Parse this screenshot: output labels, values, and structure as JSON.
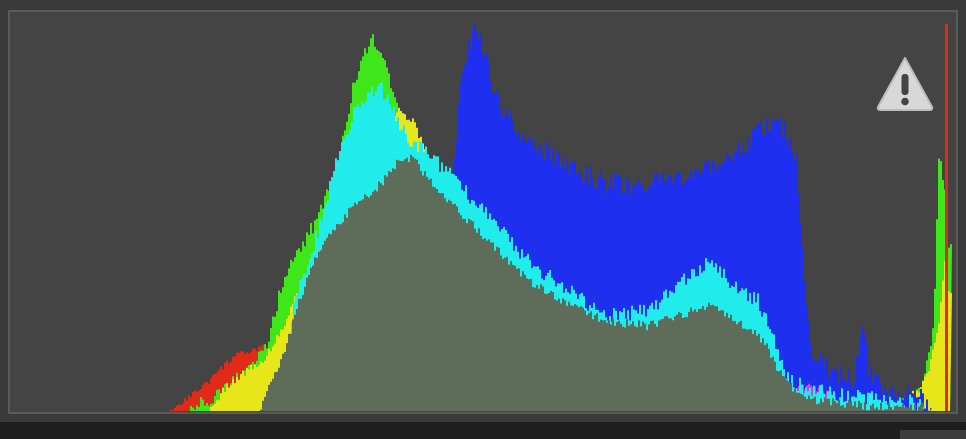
{
  "histogram": {
    "background_color": "#444444",
    "colors": {
      "red": "#e02a1a",
      "yellow": "#e6e619",
      "green": "#3ee61a",
      "cyan": "#21ecec",
      "blue": "#1f2ff0",
      "magenta": "#d63ee0",
      "luminance": "#5f6c59"
    },
    "clipping_warning": {
      "icon": "warning-triangle-icon",
      "color": "#d8d8d8"
    }
  }
}
